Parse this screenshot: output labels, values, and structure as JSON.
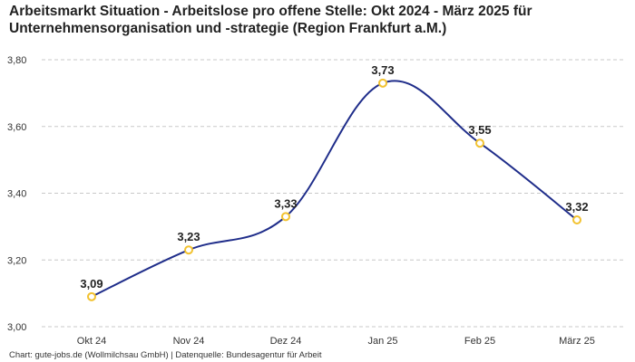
{
  "title": "Arbeitsmarkt Situation - Arbeitslose pro offene Stelle: Okt 2024 - März 2025 für Unternehmensorganisation und -strategie (Region Frankfurt a.M.)",
  "footer": "Chart: gute-jobs.de (Wollmilchsau GmbH) | Datenquelle: Bundesagentur für Arbeit",
  "chart_data": {
    "type": "line",
    "title": "Arbeitsmarkt Situation - Arbeitslose pro offene Stelle: Okt 2024 - März 2025 für Unternehmensorganisation und -strategie (Region Frankfurt a.M.)",
    "xlabel": "",
    "ylabel": "",
    "categories": [
      "Okt 24",
      "Nov 24",
      "Dez 24",
      "Jan 25",
      "Feb 25",
      "März 25"
    ],
    "values": [
      3.09,
      3.23,
      3.33,
      3.73,
      3.55,
      3.32
    ],
    "value_labels": [
      "3,09",
      "3,23",
      "3,33",
      "3,73",
      "3,55",
      "3,32"
    ],
    "ylim": [
      3.0,
      3.8
    ],
    "yticks": [
      3.0,
      3.2,
      3.4,
      3.6,
      3.8
    ],
    "ytick_labels": [
      "3,00",
      "3,20",
      "3,40",
      "3,60",
      "3,80"
    ],
    "grid": true,
    "line_color": "#1f2d8a",
    "marker_color": "#f2c230"
  }
}
